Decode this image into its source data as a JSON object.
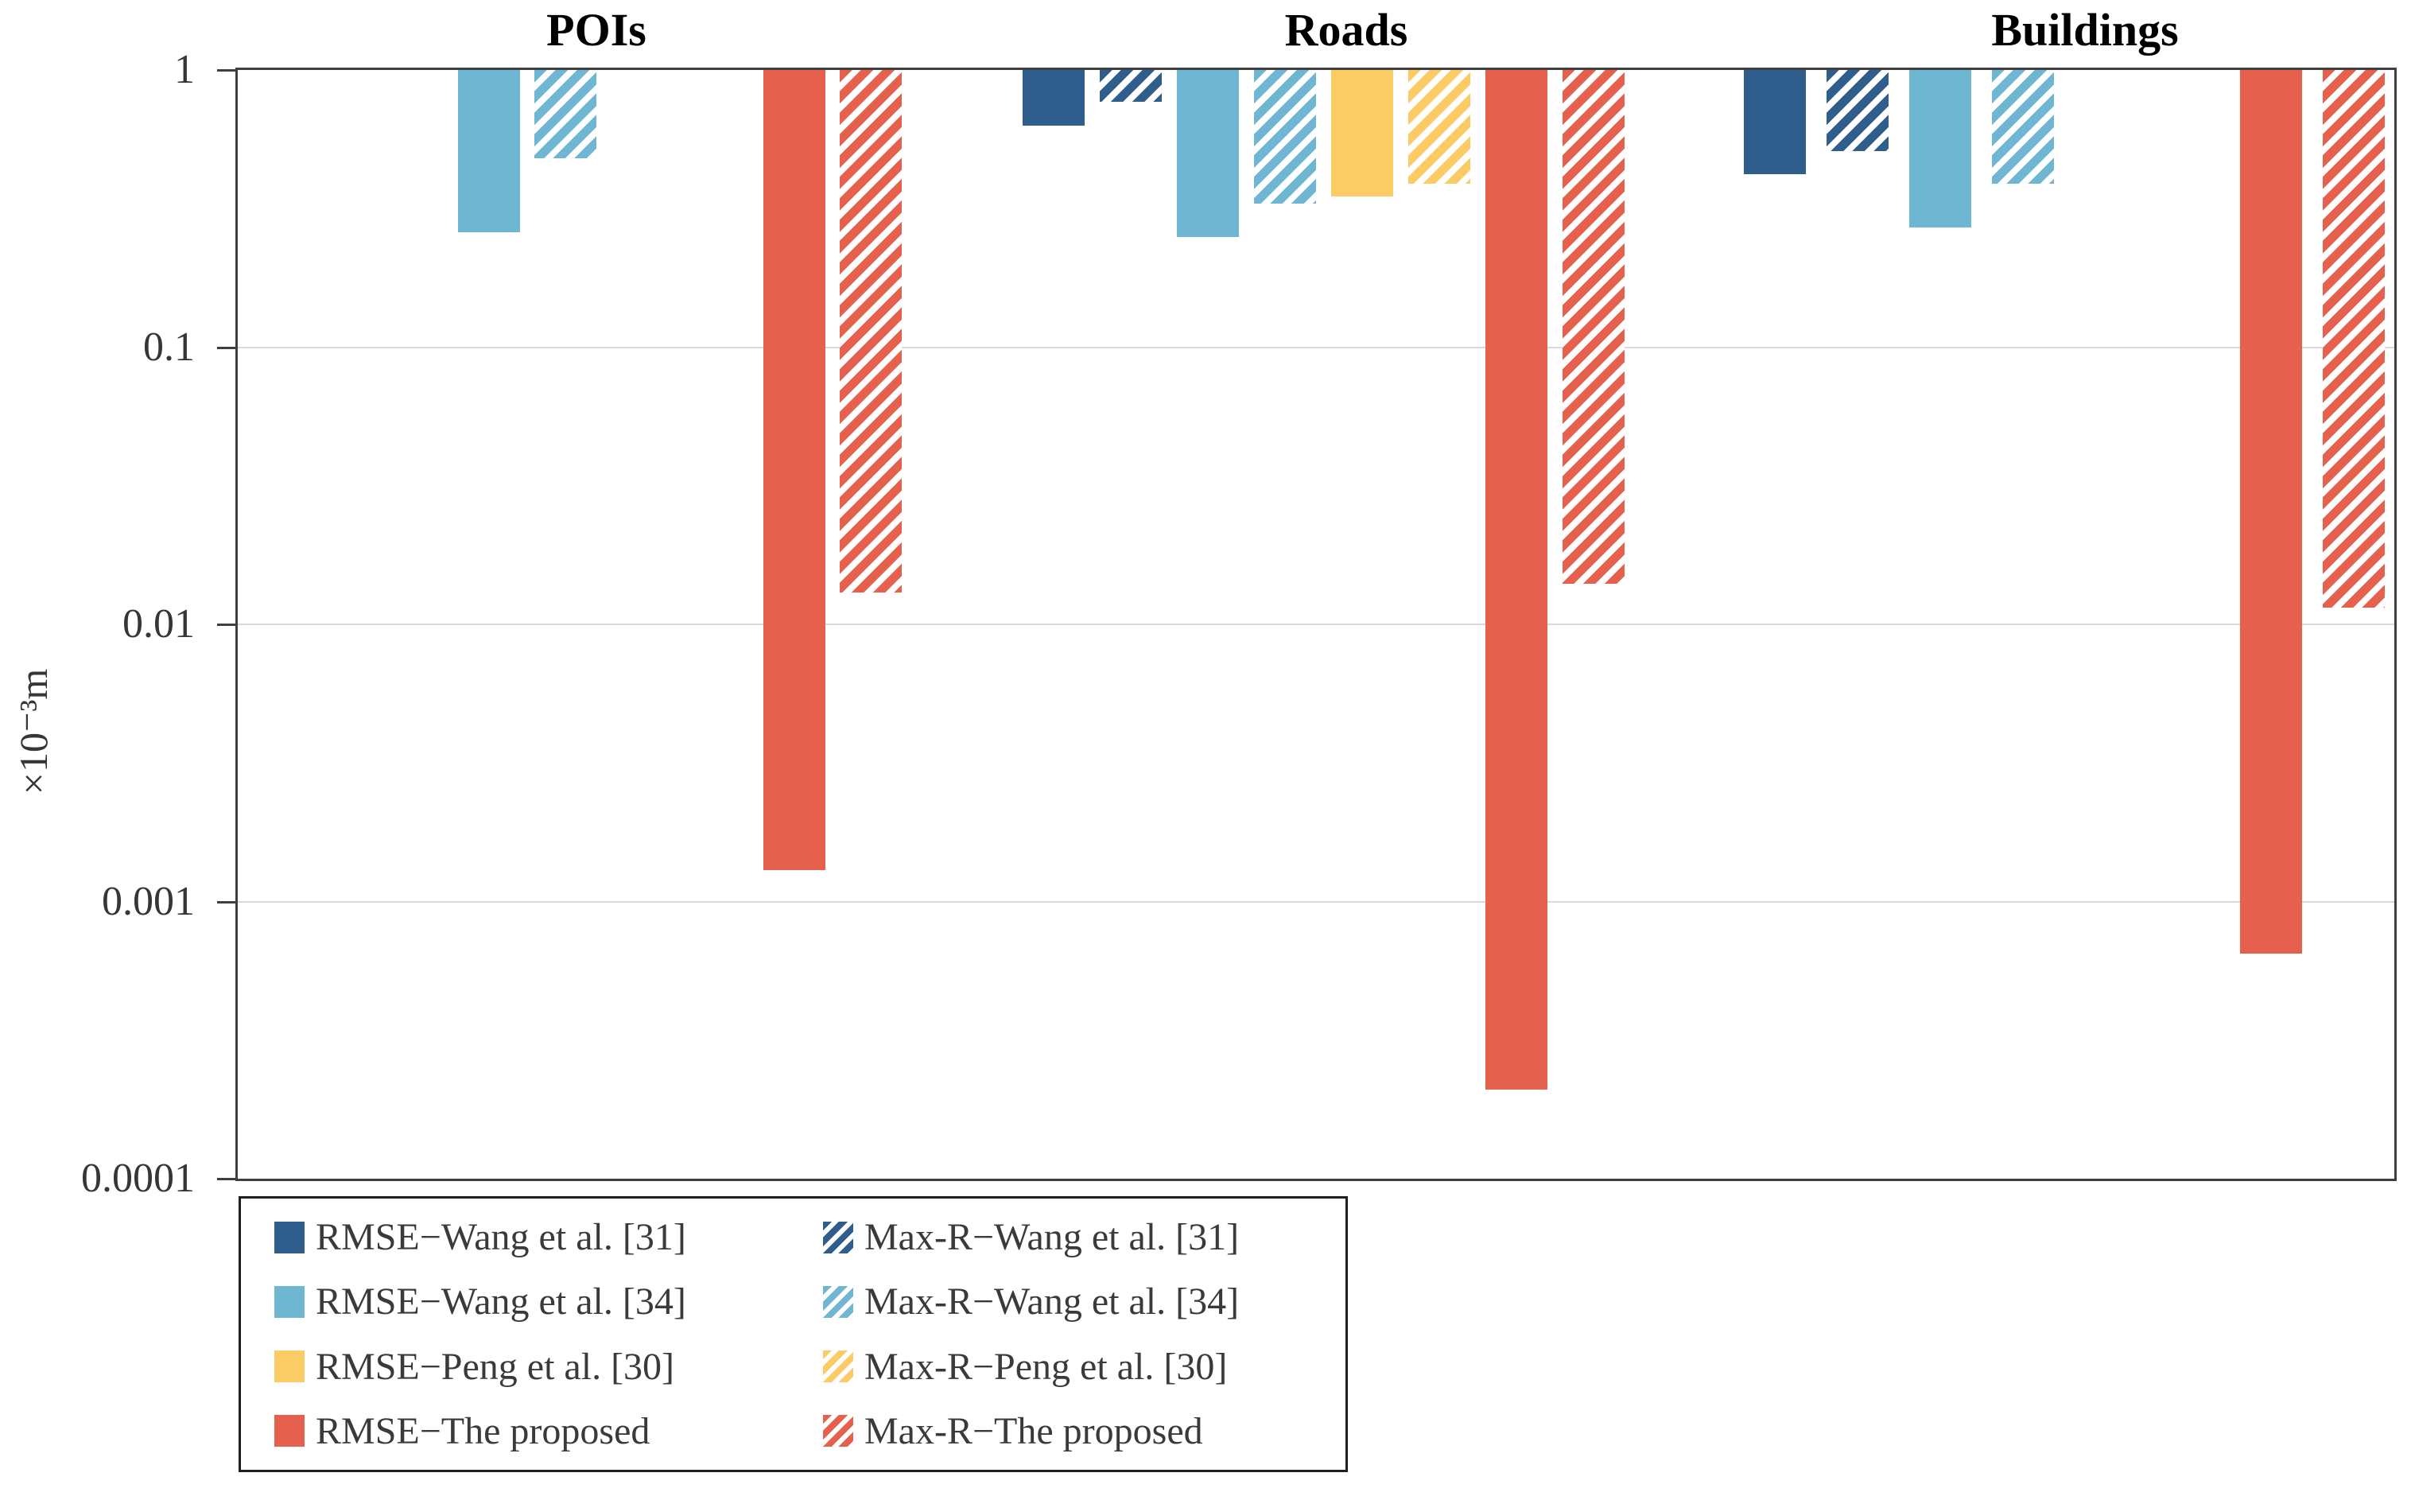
{
  "colors": {
    "axis": "#3f3f3f",
    "gridline": "#d9d9d9",
    "text": "#363636",
    "title_text": "#000000"
  },
  "chart_data": {
    "type": "bar",
    "scale": "log",
    "grid": true,
    "bars_hang_from_top": true,
    "ylim": [
      0.0001,
      1
    ],
    "ylabel": "×10⁻³m",
    "yticks": [
      {
        "label": "1",
        "value": 1
      },
      {
        "label": "0.1",
        "value": 0.1
      },
      {
        "label": "0.01",
        "value": 0.01
      },
      {
        "label": "0.001",
        "value": 0.001
      },
      {
        "label": "0.0001",
        "value": 0.0001
      }
    ],
    "categories": [
      "POIs",
      "Roads",
      "Buildings"
    ],
    "series": [
      {
        "name": "RMSE−Wang et al. [31]",
        "color": "#2f5d8c",
        "hatch": false,
        "values": [
          null,
          0.63,
          0.42
        ]
      },
      {
        "name": "Max-R−Wang et al. [31]",
        "color": "#2f5d8c",
        "hatch": true,
        "values": [
          null,
          0.77,
          0.51
        ]
      },
      {
        "name": "RMSE−Wang et al. [34]",
        "color": "#6fb6d3",
        "hatch": false,
        "values": [
          0.26,
          0.25,
          0.27
        ]
      },
      {
        "name": "Max-R−Wang et al. [34]",
        "color": "#6fb6d3",
        "hatch": true,
        "values": [
          0.48,
          0.33,
          0.39
        ]
      },
      {
        "name": "RMSE−Peng et al. [30]",
        "color": "#fbcc66",
        "hatch": false,
        "values": [
          null,
          0.35,
          null
        ]
      },
      {
        "name": "Max-R−Peng et al. [30]",
        "color": "#fbcc66",
        "hatch": true,
        "values": [
          null,
          0.39,
          null
        ]
      },
      {
        "name": "RMSE−The proposed",
        "color": "#e6604e",
        "hatch": false,
        "values": [
          0.0013,
          0.00021,
          0.00065
        ]
      },
      {
        "name": "Max-R−The proposed",
        "color": "#e6604e",
        "hatch": true,
        "values": [
          0.013,
          0.014,
          0.0115
        ]
      }
    ],
    "legend_position": "bottom-left",
    "legend_column_order": [
      0,
      2,
      4,
      6,
      1,
      3,
      5,
      7
    ]
  }
}
